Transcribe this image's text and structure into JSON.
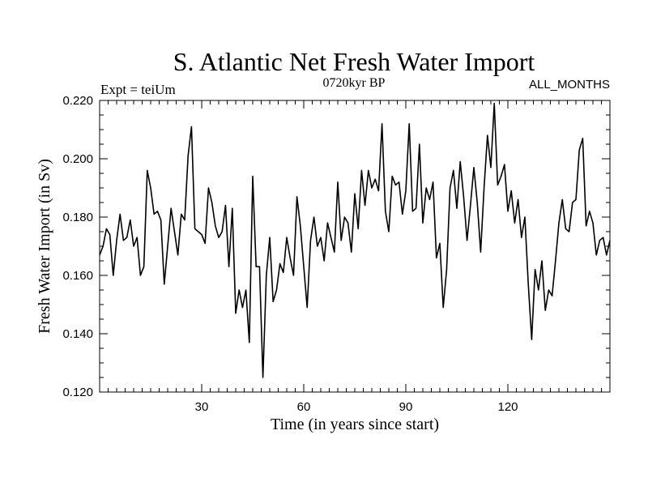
{
  "chart_data": {
    "type": "line",
    "title": "S. Atlantic Net Fresh Water Import",
    "subtitle_left": "Expt = teiUm",
    "subtitle_center": "0720kyr BP",
    "subtitle_right": "ALL_MONTHS",
    "xlabel": "Time (in years since start)",
    "ylabel": "Fresh Water Import (in Sv)",
    "xlim": [
      0,
      150
    ],
    "ylim": [
      0.12,
      0.22
    ],
    "xticks": [
      30,
      60,
      90,
      120
    ],
    "xtick_labels": [
      "30",
      "60",
      "90",
      "120"
    ],
    "yticks": [
      0.12,
      0.14,
      0.16,
      0.18,
      0.2,
      0.22
    ],
    "ytick_labels": [
      "0.120",
      "0.140",
      "0.160",
      "0.180",
      "0.200",
      "0.220"
    ],
    "grid": false,
    "series": [
      {
        "name": "Fresh Water Import",
        "color": "#000000",
        "x": [
          0,
          1,
          2,
          3,
          4,
          5,
          6,
          7,
          8,
          9,
          10,
          11,
          12,
          13,
          14,
          15,
          16,
          17,
          18,
          19,
          20,
          21,
          22,
          23,
          24,
          25,
          26,
          27,
          28,
          29,
          30,
          31,
          32,
          33,
          34,
          35,
          36,
          37,
          38,
          39,
          40,
          41,
          42,
          43,
          44,
          45,
          46,
          47,
          48,
          49,
          50,
          51,
          52,
          53,
          54,
          55,
          56,
          57,
          58,
          59,
          60,
          61,
          62,
          63,
          64,
          65,
          66,
          67,
          68,
          69,
          70,
          71,
          72,
          73,
          74,
          75,
          76,
          77,
          78,
          79,
          80,
          81,
          82,
          83,
          84,
          85,
          86,
          87,
          88,
          89,
          90,
          91,
          92,
          93,
          94,
          95,
          96,
          97,
          98,
          99,
          100,
          101,
          102,
          103,
          104,
          105,
          106,
          107,
          108,
          109,
          110,
          111,
          112,
          113,
          114,
          115,
          116,
          117,
          118,
          119,
          120,
          121,
          122,
          123,
          124,
          125,
          126,
          127,
          128,
          129,
          130,
          131,
          132,
          133,
          134,
          135,
          136,
          137,
          138,
          139,
          140,
          141,
          142,
          143,
          144,
          145,
          146,
          147,
          148,
          149,
          150
        ],
        "values": [
          0.167,
          0.17,
          0.176,
          0.174,
          0.16,
          0.172,
          0.181,
          0.172,
          0.173,
          0.179,
          0.17,
          0.173,
          0.16,
          0.163,
          0.196,
          0.19,
          0.181,
          0.182,
          0.179,
          0.157,
          0.17,
          0.183,
          0.175,
          0.167,
          0.181,
          0.179,
          0.201,
          0.211,
          0.176,
          0.175,
          0.174,
          0.171,
          0.19,
          0.185,
          0.177,
          0.173,
          0.175,
          0.184,
          0.163,
          0.183,
          0.147,
          0.155,
          0.149,
          0.155,
          0.137,
          0.194,
          0.163,
          0.163,
          0.125,
          0.16,
          0.173,
          0.151,
          0.155,
          0.164,
          0.161,
          0.173,
          0.166,
          0.16,
          0.187,
          0.177,
          0.163,
          0.149,
          0.172,
          0.18,
          0.17,
          0.173,
          0.165,
          0.178,
          0.173,
          0.168,
          0.192,
          0.172,
          0.18,
          0.178,
          0.168,
          0.188,
          0.176,
          0.196,
          0.184,
          0.196,
          0.19,
          0.193,
          0.189,
          0.212,
          0.182,
          0.175,
          0.194,
          0.191,
          0.192,
          0.181,
          0.189,
          0.212,
          0.182,
          0.183,
          0.205,
          0.178,
          0.19,
          0.186,
          0.192,
          0.166,
          0.171,
          0.149,
          0.162,
          0.19,
          0.196,
          0.183,
          0.199,
          0.187,
          0.172,
          0.184,
          0.197,
          0.185,
          0.168,
          0.19,
          0.208,
          0.197,
          0.219,
          0.191,
          0.194,
          0.198,
          0.182,
          0.189,
          0.178,
          0.186,
          0.173,
          0.18,
          0.157,
          0.138,
          0.162,
          0.155,
          0.165,
          0.148,
          0.155,
          0.153,
          0.165,
          0.178,
          0.186,
          0.176,
          0.175,
          0.185,
          0.186,
          0.203,
          0.207,
          0.177,
          0.182,
          0.178,
          0.167,
          0.172,
          0.173,
          0.167,
          0.172
        ]
      }
    ]
  }
}
